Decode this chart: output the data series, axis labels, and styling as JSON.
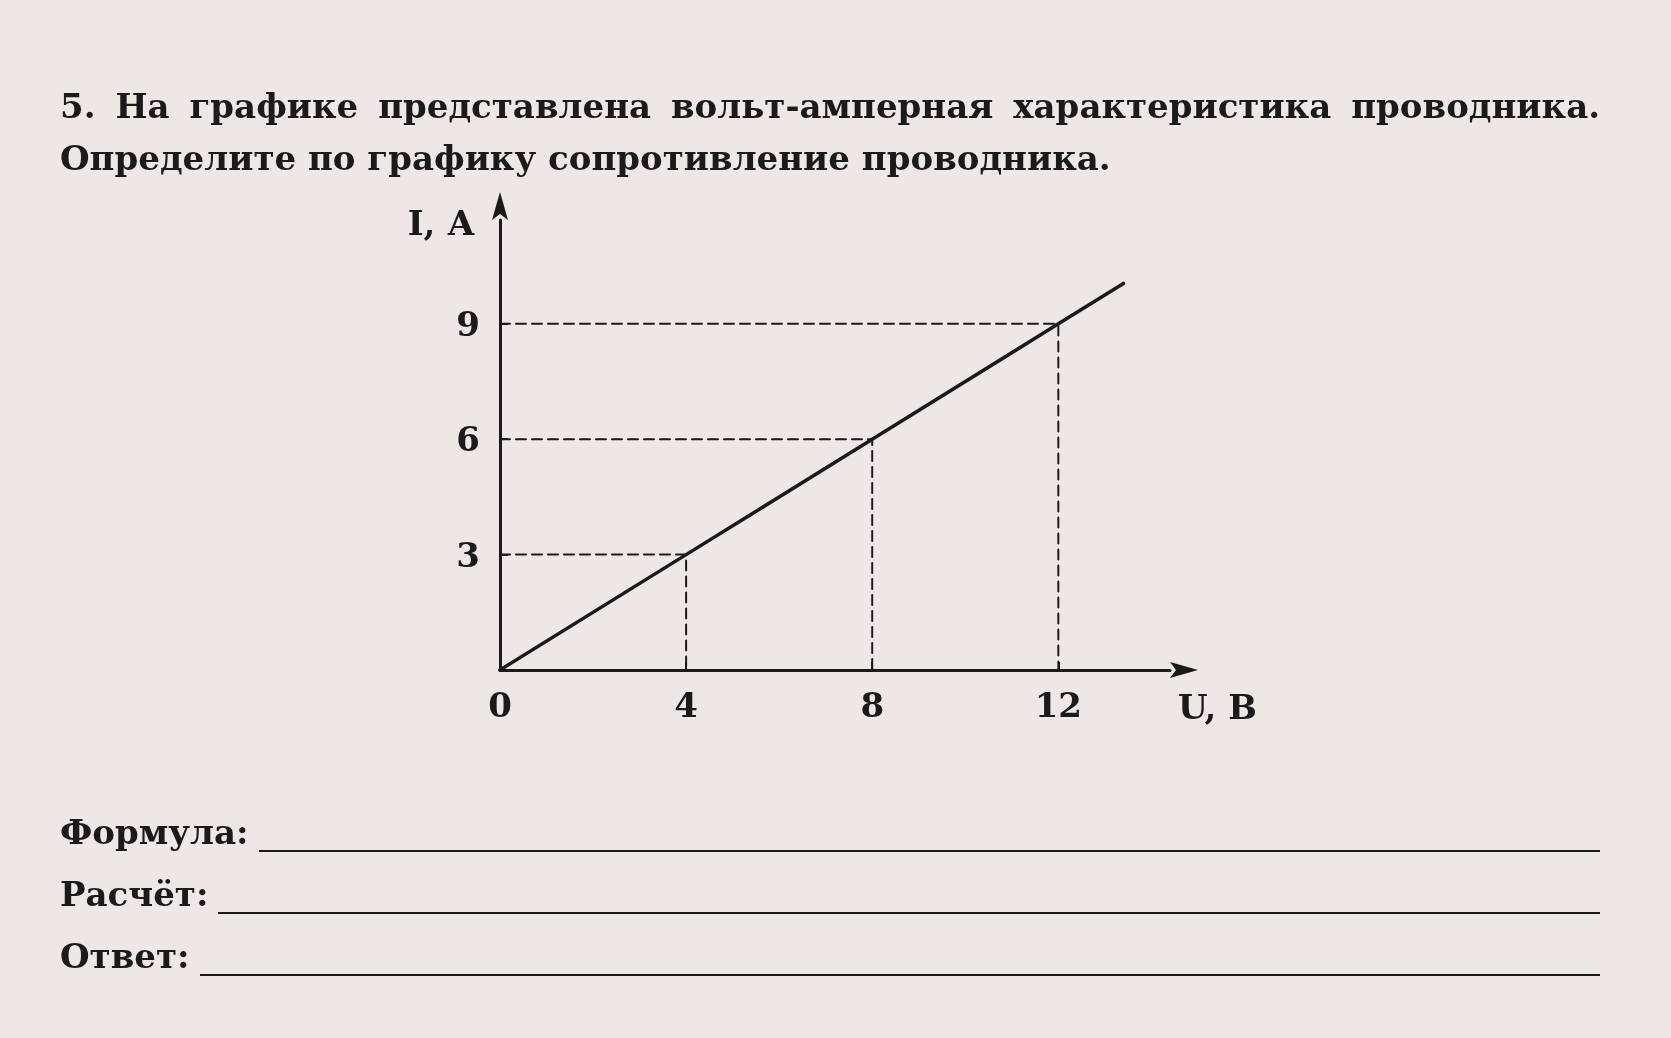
{
  "chart_data": {
    "type": "line",
    "title": "5. На графике представлена вольт-амперная характеристика проводника. Определите по графику сопротивление проводника.",
    "xlabel": "U, В",
    "ylabel": "I, А",
    "xlim": [
      0,
      14.4
    ],
    "ylim": [
      0,
      11.7
    ],
    "xticks": [
      0,
      4,
      8,
      12
    ],
    "yticks": [
      3,
      6,
      9
    ],
    "grid": false,
    "marker": "none",
    "series": [
      {
        "color": "#1a1a1a",
        "x": [
          0,
          4,
          8,
          12,
          13.4
        ],
        "values": [
          0,
          3,
          6,
          9,
          10.05
        ],
        "line_style": "solid"
      },
      {
        "color": "#1a1a1a",
        "x": [
          0,
          4,
          4
        ],
        "values": [
          3,
          3,
          0
        ],
        "line_style": "dashed"
      },
      {
        "color": "#1a1a1a",
        "x": [
          0,
          8,
          8
        ],
        "values": [
          6,
          6,
          0
        ],
        "line_style": "dashed"
      },
      {
        "color": "#1a1a1a",
        "x": [
          0,
          12,
          12
        ],
        "values": [
          9,
          9,
          0
        ],
        "line_style": "dashed"
      }
    ],
    "annotations": [
      "Формула:",
      "Расчёт:",
      "Ответ:"
    ]
  }
}
